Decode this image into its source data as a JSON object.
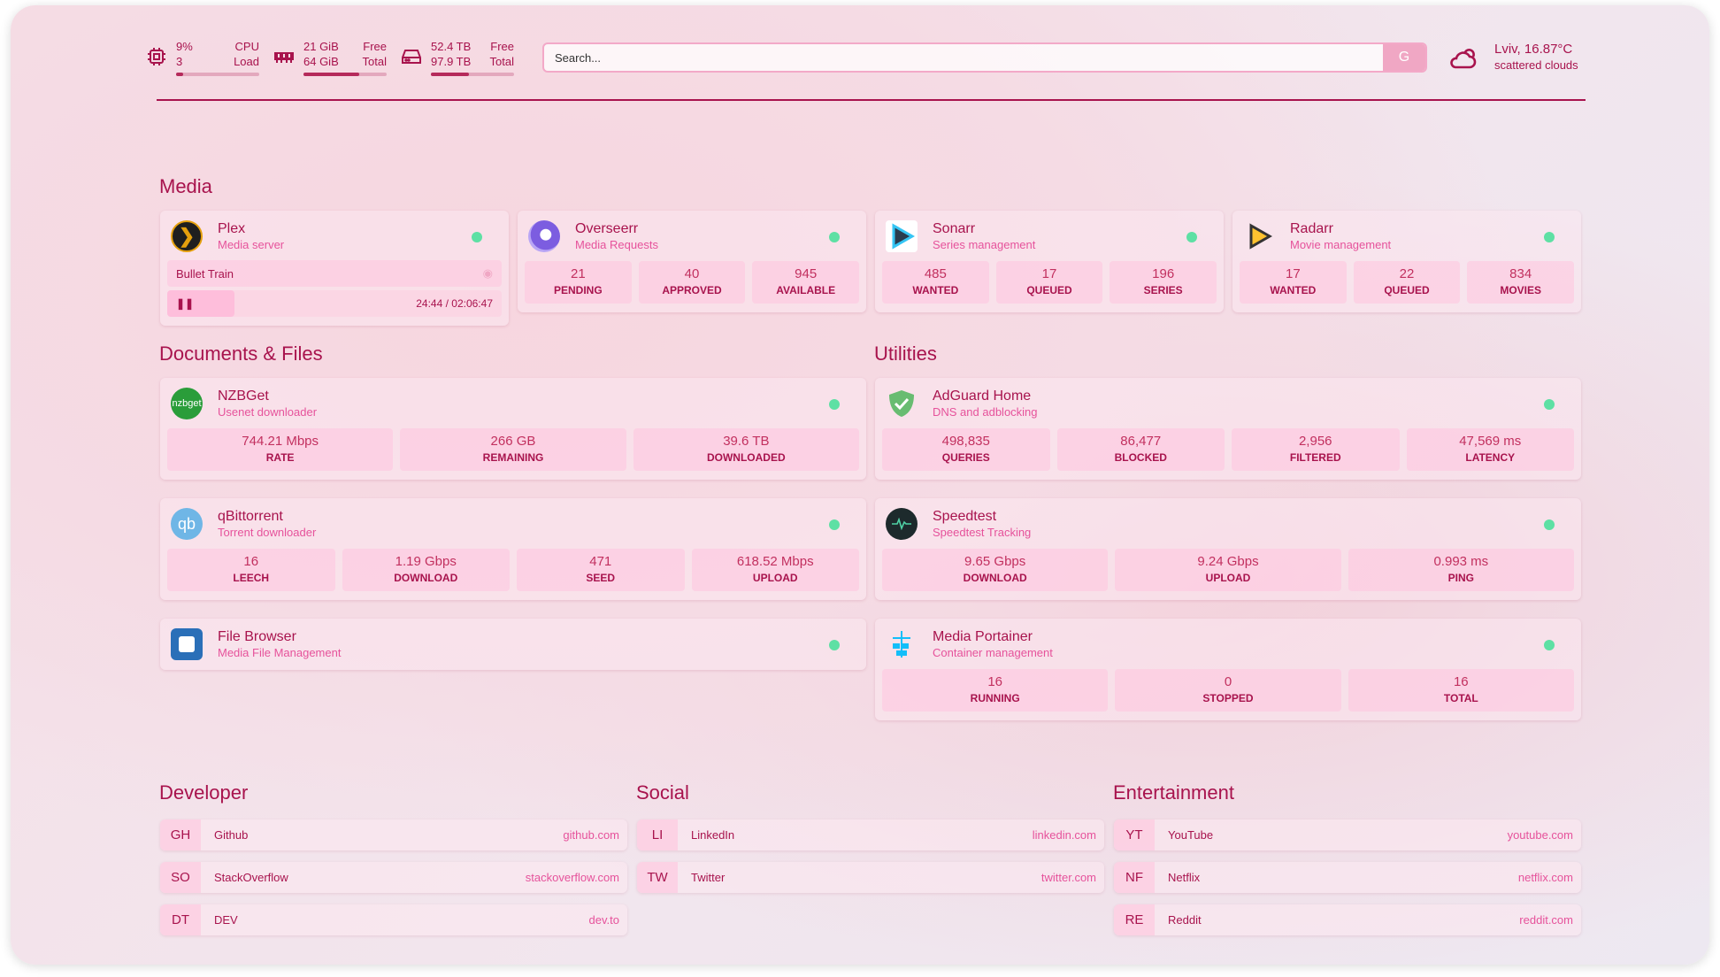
{
  "header": {
    "cpu": {
      "value": "9%",
      "sub": "3",
      "label1": "CPU",
      "label2": "Load",
      "percent": 9
    },
    "memory": {
      "value": "21 GiB",
      "sub": "64 GiB",
      "label1": "Free",
      "label2": "Total",
      "percent": 67
    },
    "disk": {
      "value": "52.4 TB",
      "sub": "97.9 TB",
      "label1": "Free",
      "label2": "Total",
      "percent": 46
    },
    "search": {
      "placeholder": "Search...",
      "button": "G"
    },
    "weather": {
      "location": "Lviv, 16.87°C",
      "condition": "scattered clouds"
    }
  },
  "colors": {
    "primary": "#a8134d",
    "accent": "#e6529b",
    "status_ok": "#5ee0a4"
  },
  "sections": {
    "media": "Media",
    "documents": "Documents & Files",
    "utilities": "Utilities",
    "developer": "Developer",
    "social": "Social",
    "entertainment": "Entertainment"
  },
  "media": [
    {
      "name": "Plex",
      "desc": "Media server",
      "icon": "plex-icon",
      "now_playing": {
        "title": "Bullet Train",
        "time": "24:44 / 02:06:47"
      }
    },
    {
      "name": "Overseerr",
      "desc": "Media Requests",
      "icon": "overseerr-icon",
      "stats": [
        {
          "v": "21",
          "l": "PENDING"
        },
        {
          "v": "40",
          "l": "APPROVED"
        },
        {
          "v": "945",
          "l": "AVAILABLE"
        }
      ]
    },
    {
      "name": "Sonarr",
      "desc": "Series management",
      "icon": "sonarr-icon",
      "stats": [
        {
          "v": "485",
          "l": "WANTED"
        },
        {
          "v": "17",
          "l": "QUEUED"
        },
        {
          "v": "196",
          "l": "SERIES"
        }
      ]
    },
    {
      "name": "Radarr",
      "desc": "Movie management",
      "icon": "radarr-icon",
      "stats": [
        {
          "v": "17",
          "l": "WANTED"
        },
        {
          "v": "22",
          "l": "QUEUED"
        },
        {
          "v": "834",
          "l": "MOVIES"
        }
      ]
    }
  ],
  "documents": [
    {
      "name": "NZBGet",
      "desc": "Usenet downloader",
      "icon": "nzbget-icon",
      "logo_text": "nzbget",
      "stats": [
        {
          "v": "744.21 Mbps",
          "l": "RATE"
        },
        {
          "v": "266 GB",
          "l": "REMAINING"
        },
        {
          "v": "39.6 TB",
          "l": "DOWNLOADED"
        }
      ]
    },
    {
      "name": "qBittorrent",
      "desc": "Torrent downloader",
      "icon": "qbittorrent-icon",
      "logo_text": "qb",
      "stats": [
        {
          "v": "16",
          "l": "LEECH"
        },
        {
          "v": "1.19 Gbps",
          "l": "DOWNLOAD"
        },
        {
          "v": "471",
          "l": "SEED"
        },
        {
          "v": "618.52 Mbps",
          "l": "UPLOAD"
        }
      ]
    },
    {
      "name": "File Browser",
      "desc": "Media File Management",
      "icon": "file-browser-icon"
    }
  ],
  "utilities": [
    {
      "name": "AdGuard Home",
      "desc": "DNS and adblocking",
      "icon": "adguard-icon",
      "stats": [
        {
          "v": "498,835",
          "l": "QUERIES"
        },
        {
          "v": "86,477",
          "l": "BLOCKED"
        },
        {
          "v": "2,956",
          "l": "FILTERED"
        },
        {
          "v": "47,569 ms",
          "l": "LATENCY"
        }
      ]
    },
    {
      "name": "Speedtest",
      "desc": "Speedtest Tracking",
      "icon": "speedtest-icon",
      "stats": [
        {
          "v": "9.65 Gbps",
          "l": "DOWNLOAD"
        },
        {
          "v": "9.24 Gbps",
          "l": "UPLOAD"
        },
        {
          "v": "0.993 ms",
          "l": "PING"
        }
      ]
    },
    {
      "name": "Media Portainer",
      "desc": "Container management",
      "icon": "portainer-icon",
      "stats": [
        {
          "v": "16",
          "l": "RUNNING"
        },
        {
          "v": "0",
          "l": "STOPPED"
        },
        {
          "v": "16",
          "l": "TOTAL"
        }
      ]
    }
  ],
  "developer": [
    {
      "abbr": "GH",
      "name": "Github",
      "url": "github.com"
    },
    {
      "abbr": "SO",
      "name": "StackOverflow",
      "url": "stackoverflow.com"
    },
    {
      "abbr": "DT",
      "name": "DEV",
      "url": "dev.to"
    }
  ],
  "social": [
    {
      "abbr": "LI",
      "name": "LinkedIn",
      "url": "linkedin.com"
    },
    {
      "abbr": "TW",
      "name": "Twitter",
      "url": "twitter.com"
    }
  ],
  "entertainment": [
    {
      "abbr": "YT",
      "name": "YouTube",
      "url": "youtube.com"
    },
    {
      "abbr": "NF",
      "name": "Netflix",
      "url": "netflix.com"
    },
    {
      "abbr": "RE",
      "name": "Reddit",
      "url": "reddit.com"
    }
  ]
}
